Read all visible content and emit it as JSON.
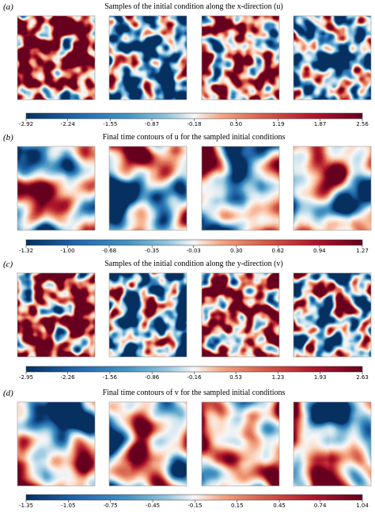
{
  "chart_data": [
    {
      "type": "heatmap",
      "label": "(a)",
      "title": "Samples of the initial condition along the x-direction (u)",
      "xlim": [
        -2.92,
        2.56
      ],
      "xticks": [
        -2.92,
        -2.24,
        -1.55,
        -0.87,
        -0.18,
        {
          "value": 0.5,
          "label": "0.50"
        },
        1.19,
        1.87,
        2.56
      ]
    },
    {
      "type": "heatmap",
      "label": "(b)",
      "title": "Final time contours of u for the sampled initial conditions",
      "xlim": [
        -1.32,
        1.27
      ],
      "xticks": [
        -1.32,
        {
          "value": -1,
          "label": "-1.00"
        },
        -0.68,
        -0.35,
        -0.03,
        {
          "value": 0.3,
          "label": "0.30"
        },
        0.62,
        0.94,
        1.27
      ]
    },
    {
      "type": "heatmap",
      "label": "(c)",
      "title": "Samples of the initial condition along the y-direction (v)",
      "xlim": [
        -2.95,
        2.63
      ],
      "xticks": [
        -2.95,
        -2.26,
        -1.56,
        -0.86,
        -0.16,
        0.53,
        1.23,
        1.93,
        2.63
      ]
    },
    {
      "type": "heatmap",
      "label": "(d)",
      "title": "Final time contours of v for the sampled initial conditions",
      "xlim": [
        -1.35,
        1.04
      ],
      "xticks": [
        -1.35,
        -1.05,
        -0.75,
        -0.45,
        -0.15,
        0.15,
        0.45,
        0.74,
        1.04
      ]
    }
  ]
}
